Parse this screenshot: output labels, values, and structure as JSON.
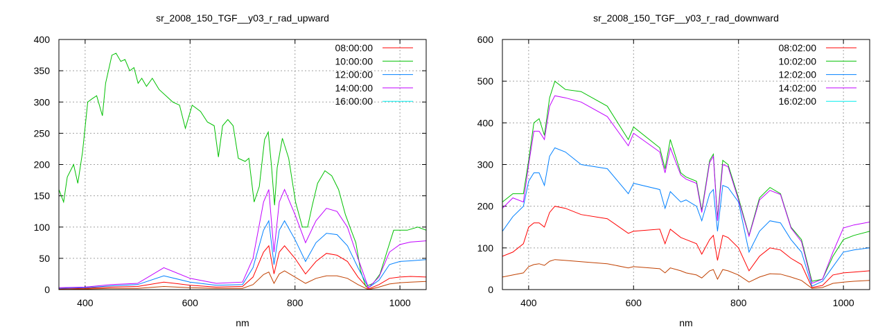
{
  "chart_data": [
    {
      "type": "line",
      "title": "sr_2008_150_TGF__y03_r_rad_upward",
      "xlabel": "nm",
      "ylabel": "",
      "xlim": [
        350,
        1050
      ],
      "ylim": [
        0,
        400
      ],
      "xticks": [
        400,
        600,
        800,
        1000
      ],
      "yticks": [
        0,
        50,
        100,
        150,
        200,
        250,
        300,
        350,
        400
      ],
      "grid": true,
      "legend_position": "top-right",
      "series": [
        {
          "name": "08:00:00",
          "legend_color": "#ff0000",
          "line_color": "#ff0000",
          "x": [
            350,
            400,
            450,
            500,
            550,
            600,
            650,
            700,
            720,
            740,
            750,
            760,
            770,
            780,
            800,
            820,
            840,
            860,
            880,
            900,
            920,
            940,
            960,
            980,
            1000,
            1020,
            1050
          ],
          "y": [
            1,
            2,
            4,
            5,
            12,
            7,
            4,
            5,
            20,
            60,
            70,
            25,
            60,
            70,
            50,
            25,
            45,
            58,
            55,
            45,
            20,
            1,
            8,
            18,
            20,
            21,
            20
          ]
        },
        {
          "name": "10:00:00",
          "legend_color": "#00c000",
          "line_color": "#00c000",
          "x": [
            350,
            359,
            366,
            378,
            386,
            395,
            405,
            413,
            422,
            433,
            439,
            451,
            459,
            468,
            476,
            485,
            493,
            501,
            508,
            517,
            528,
            541,
            567,
            580,
            591,
            604,
            620,
            633,
            646,
            654,
            662,
            672,
            682,
            692,
            705,
            712,
            722,
            732,
            742,
            749,
            755,
            761,
            766,
            776,
            788,
            801,
            814,
            824,
            833,
            843,
            857,
            870,
            883,
            896,
            907,
            916,
            925,
            935,
            949,
            962,
            975,
            988,
            1014,
            1034,
            1050
          ],
          "y": [
            160,
            140,
            180,
            200,
            170,
            220,
            300,
            305,
            310,
            278,
            330,
            375,
            378,
            365,
            368,
            350,
            355,
            330,
            338,
            325,
            338,
            320,
            300,
            295,
            258,
            295,
            285,
            268,
            262,
            212,
            262,
            272,
            262,
            210,
            205,
            210,
            140,
            165,
            240,
            252,
            200,
            135,
            195,
            242,
            210,
            140,
            100,
            100,
            135,
            170,
            190,
            182,
            160,
            120,
            95,
            75,
            30,
            5,
            10,
            25,
            60,
            95,
            95,
            100,
            95
          ]
        },
        {
          "name": "12:00:00",
          "legend_color": "#0080ff",
          "line_color": "#0080ff",
          "x": [
            350,
            400,
            450,
            500,
            550,
            600,
            650,
            700,
            720,
            740,
            750,
            760,
            770,
            780,
            800,
            820,
            840,
            860,
            880,
            900,
            920,
            940,
            960,
            980,
            1000,
            1020,
            1050
          ],
          "y": [
            2,
            3,
            6,
            8,
            22,
            12,
            7,
            8,
            35,
            95,
            110,
            40,
            95,
            110,
            80,
            45,
            75,
            90,
            88,
            70,
            35,
            3,
            15,
            40,
            45,
            46,
            48
          ]
        },
        {
          "name": "14:00:00",
          "legend_color": "#c000ff",
          "line_color": "#c000ff",
          "x": [
            350,
            400,
            450,
            500,
            550,
            600,
            650,
            700,
            720,
            740,
            750,
            760,
            770,
            780,
            800,
            820,
            840,
            860,
            880,
            900,
            920,
            940,
            960,
            980,
            1000,
            1020,
            1050
          ],
          "y": [
            3,
            4,
            8,
            10,
            35,
            18,
            10,
            12,
            50,
            140,
            160,
            60,
            140,
            160,
            120,
            75,
            110,
            130,
            125,
            100,
            50,
            3,
            20,
            60,
            72,
            76,
            78
          ]
        },
        {
          "name": "16:00:00",
          "legend_color": "#00eeee",
          "line_color": "#c04000",
          "x": [
            350,
            400,
            450,
            500,
            550,
            600,
            650,
            700,
            720,
            740,
            750,
            760,
            770,
            780,
            800,
            820,
            840,
            860,
            880,
            900,
            920,
            940,
            960,
            980,
            1000,
            1020,
            1050
          ],
          "y": [
            0,
            1,
            2,
            2,
            5,
            3,
            2,
            2,
            8,
            24,
            28,
            10,
            25,
            30,
            20,
            10,
            18,
            22,
            22,
            18,
            8,
            0,
            4,
            9,
            11,
            12,
            13
          ]
        }
      ]
    },
    {
      "type": "line",
      "title": "sr_2008_150_TGF__y03_r_rad_downward",
      "xlabel": "nm",
      "ylabel": "",
      "xlim": [
        350,
        1050
      ],
      "ylim": [
        0,
        600
      ],
      "xticks": [
        400,
        600,
        800,
        1000
      ],
      "yticks": [
        0,
        100,
        200,
        300,
        400,
        500,
        600
      ],
      "grid": true,
      "legend_position": "top-right",
      "series": [
        {
          "name": "08:02:00",
          "legend_color": "#ff0000",
          "line_color": "#ff0000",
          "x": [
            350,
            370,
            390,
            400,
            410,
            420,
            430,
            440,
            450,
            470,
            500,
            550,
            590,
            600,
            650,
            660,
            670,
            690,
            700,
            720,
            730,
            745,
            752,
            760,
            770,
            780,
            800,
            820,
            840,
            860,
            880,
            900,
            920,
            940,
            960,
            980,
            1000,
            1020,
            1050
          ],
          "y": [
            80,
            90,
            110,
            150,
            160,
            160,
            150,
            185,
            200,
            195,
            180,
            170,
            135,
            140,
            145,
            110,
            145,
            125,
            120,
            110,
            85,
            120,
            130,
            70,
            130,
            125,
            100,
            45,
            80,
            100,
            95,
            75,
            60,
            5,
            10,
            35,
            40,
            42,
            45
          ]
        },
        {
          "name": "10:02:00",
          "legend_color": "#00c000",
          "line_color": "#00c000",
          "x": [
            350,
            370,
            390,
            400,
            410,
            420,
            430,
            440,
            450,
            470,
            500,
            550,
            590,
            600,
            650,
            660,
            670,
            690,
            700,
            720,
            730,
            745,
            752,
            760,
            770,
            780,
            800,
            820,
            840,
            860,
            880,
            900,
            920,
            940,
            960,
            980,
            1000,
            1020,
            1050
          ],
          "y": [
            210,
            230,
            230,
            310,
            400,
            410,
            370,
            460,
            500,
            480,
            475,
            440,
            360,
            390,
            340,
            290,
            360,
            280,
            270,
            260,
            190,
            310,
            325,
            170,
            310,
            300,
            220,
            130,
            220,
            245,
            230,
            150,
            120,
            20,
            25,
            80,
            120,
            130,
            140
          ]
        },
        {
          "name": "12:02:00",
          "legend_color": "#0080ff",
          "line_color": "#0080ff",
          "x": [
            350,
            370,
            390,
            400,
            410,
            420,
            430,
            440,
            450,
            470,
            500,
            550,
            590,
            600,
            650,
            660,
            670,
            690,
            700,
            720,
            730,
            745,
            752,
            760,
            770,
            780,
            800,
            820,
            840,
            860,
            880,
            900,
            920,
            940,
            960,
            980,
            1000,
            1020,
            1050
          ],
          "y": [
            140,
            175,
            200,
            260,
            280,
            280,
            250,
            320,
            340,
            330,
            300,
            290,
            230,
            255,
            240,
            195,
            235,
            210,
            215,
            200,
            165,
            230,
            240,
            140,
            250,
            245,
            210,
            90,
            140,
            165,
            160,
            120,
            90,
            8,
            20,
            55,
            90,
            95,
            100
          ]
        },
        {
          "name": "14:02:00",
          "legend_color": "#c000ff",
          "line_color": "#c000ff",
          "x": [
            350,
            370,
            390,
            400,
            410,
            420,
            430,
            440,
            450,
            470,
            500,
            550,
            590,
            600,
            650,
            660,
            670,
            690,
            700,
            720,
            730,
            745,
            752,
            760,
            770,
            780,
            800,
            820,
            840,
            860,
            880,
            900,
            920,
            940,
            960,
            980,
            1000,
            1020,
            1050
          ],
          "y": [
            195,
            220,
            210,
            300,
            380,
            380,
            360,
            440,
            465,
            460,
            450,
            415,
            345,
            375,
            330,
            280,
            340,
            275,
            265,
            255,
            185,
            305,
            320,
            165,
            300,
            295,
            215,
            128,
            215,
            238,
            228,
            148,
            115,
            15,
            25,
            90,
            148,
            155,
            162
          ]
        },
        {
          "name": "16:02:00",
          "legend_color": "#00eeee",
          "line_color": "#c04000",
          "x": [
            350,
            370,
            390,
            400,
            410,
            420,
            430,
            440,
            450,
            470,
            500,
            550,
            590,
            600,
            650,
            660,
            670,
            690,
            700,
            720,
            730,
            745,
            752,
            760,
            770,
            780,
            800,
            820,
            840,
            860,
            880,
            900,
            920,
            940,
            960,
            980,
            1000,
            1020,
            1050
          ],
          "y": [
            30,
            35,
            40,
            55,
            60,
            62,
            58,
            68,
            72,
            70,
            67,
            62,
            52,
            55,
            50,
            40,
            52,
            45,
            40,
            35,
            28,
            45,
            48,
            25,
            48,
            45,
            35,
            18,
            30,
            38,
            37,
            30,
            22,
            3,
            5,
            15,
            18,
            20,
            22
          ]
        }
      ]
    }
  ]
}
